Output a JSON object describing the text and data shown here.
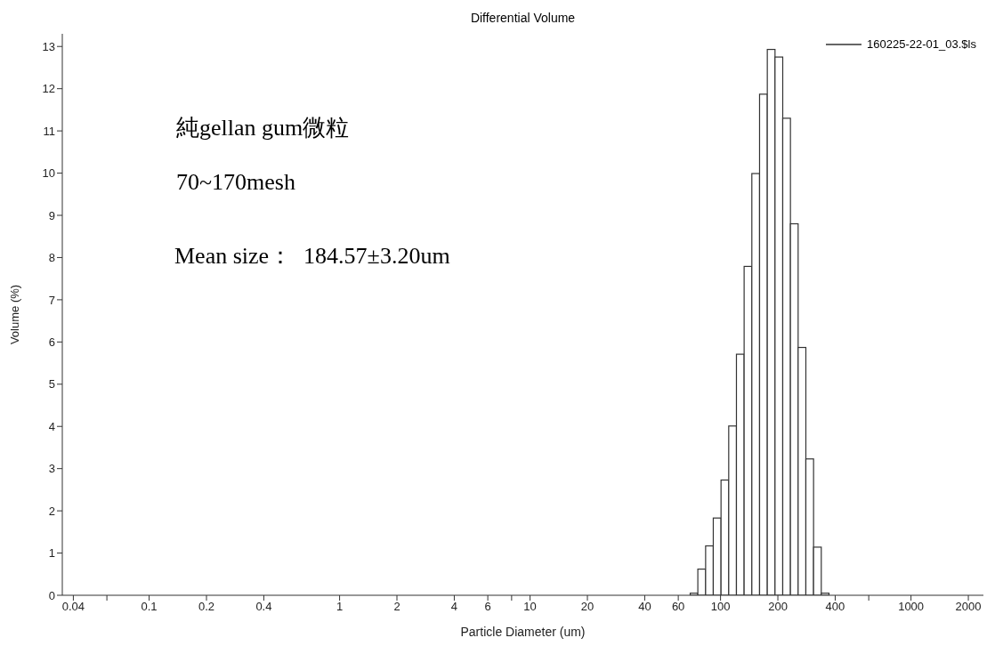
{
  "chart_data": {
    "type": "histogram",
    "title": "Differential Volume",
    "xlabel": "Particle Diameter (um)",
    "ylabel": "Volume (%)",
    "annotations": [
      "純gellan gum微粒",
      "70~170mesh",
      "Mean size：  184.57±3.20um"
    ],
    "bins": [
      69.3,
      76.0,
      83.5,
      91.6,
      100.6,
      110.4,
      121.2,
      133.0,
      146.0,
      160.3,
      176.0,
      193.2,
      212.1,
      232.8,
      255.5,
      280.5,
      307.9,
      338.0,
      371.0
    ],
    "series": [
      {
        "name": "160225-22-01_03.$ls",
        "color": "#333333",
        "values": [
          0.05,
          0.62,
          1.17,
          1.83,
          2.73,
          4.01,
          5.71,
          7.79,
          9.99,
          11.87,
          12.93,
          12.75,
          11.3,
          8.8,
          5.87,
          3.23,
          1.14,
          0.05
        ]
      }
    ],
    "log": "x",
    "xlim": [
      0.035,
      2400
    ],
    "ylim": [
      0,
      13.3
    ],
    "xticks": [
      0.04,
      {
        "value": 0.06,
        "label": null
      },
      0.1,
      0.2,
      0.4,
      1,
      2,
      4,
      6,
      {
        "value": 8,
        "label": null
      },
      10,
      20,
      40,
      60,
      100,
      200,
      400,
      {
        "value": 600,
        "label": null
      },
      1000,
      2000
    ],
    "yticks": [
      0,
      1,
      2,
      3,
      4,
      5,
      6,
      7,
      8,
      9,
      10,
      11,
      12,
      13
    ],
    "grid": false,
    "legend": "top right"
  }
}
